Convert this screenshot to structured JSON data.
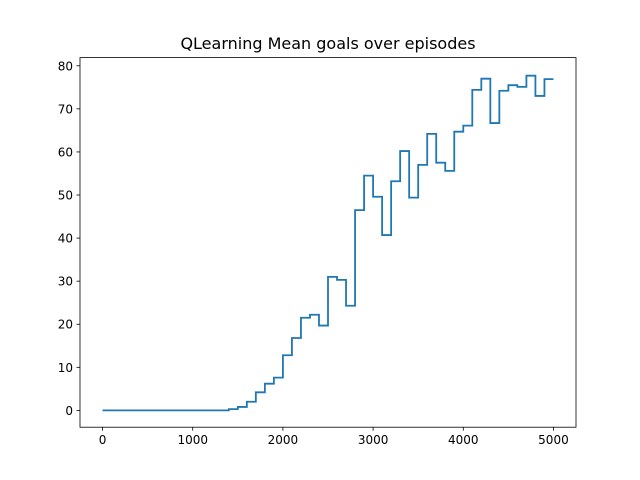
{
  "chart_data": {
    "type": "line",
    "title": "QLearning Mean goals over episodes",
    "xlabel": "",
    "ylabel": "",
    "xlim": [
      -250,
      5250
    ],
    "ylim": [
      -3.9,
      81.9
    ],
    "xticks": [
      0,
      1000,
      2000,
      3000,
      4000,
      5000
    ],
    "yticks": [
      0,
      10,
      20,
      30,
      40,
      50,
      60,
      70,
      80
    ],
    "grid": false,
    "legend": "none",
    "step": "post",
    "series": [
      {
        "color": "#1f77b4",
        "x": [
          0,
          100,
          200,
          300,
          400,
          500,
          600,
          700,
          800,
          900,
          1000,
          1100,
          1200,
          1300,
          1400,
          1500,
          1600,
          1700,
          1800,
          1900,
          2000,
          2100,
          2200,
          2300,
          2400,
          2500,
          2600,
          2700,
          2800,
          2900,
          3000,
          3100,
          3200,
          3300,
          3400,
          3500,
          3600,
          3700,
          3800,
          3900,
          4000,
          4100,
          4200,
          4300,
          4400,
          4500,
          4600,
          4700,
          4800,
          4900,
          5000
        ],
        "values": [
          0,
          0,
          0,
          0,
          0,
          0,
          0,
          0,
          0,
          0,
          0,
          0,
          0,
          0,
          0.3,
          0.8,
          2,
          4.2,
          6.2,
          7.6,
          12.8,
          16.8,
          21.5,
          22.2,
          19.7,
          31,
          30.3,
          24.3,
          46.5,
          54.5,
          49.6,
          40.7,
          53.2,
          60.2,
          49.4,
          57,
          64.2,
          57.5,
          55.6,
          64.7,
          66.1,
          74.4,
          77,
          66.7,
          74.2,
          75.5,
          75.1,
          77.7,
          73,
          76.9,
          76.9
        ]
      }
    ]
  }
}
